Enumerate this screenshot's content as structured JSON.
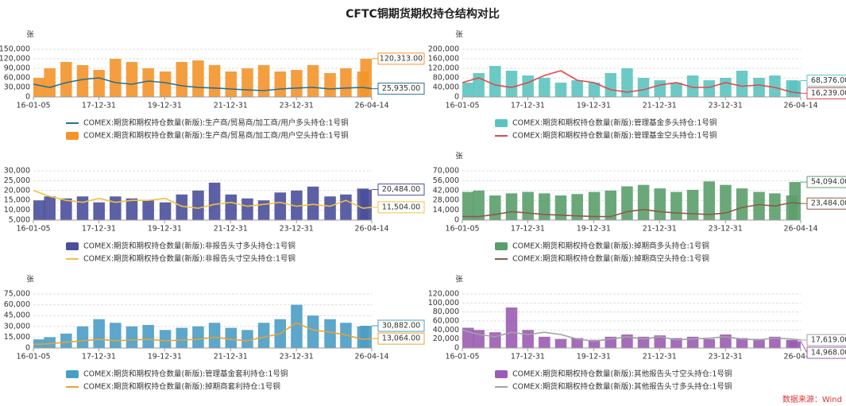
{
  "title": "CFTC铜期货期权持仓结构对比",
  "source": "数据来源：Wind",
  "chart_data": [
    {
      "type": "combo",
      "ylabel": "张",
      "x": [
        "16-01-05",
        "16-07-05",
        "17-01-03",
        "17-07-04",
        "18-01-02",
        "18-07-03",
        "19-01-01",
        "19-07-02",
        "20-01-07",
        "20-07-07",
        "21-01-05",
        "21-07-06",
        "22-01-04",
        "22-07-05",
        "23-01-03",
        "23-07-04",
        "24-01-02",
        "24-07-02",
        "25-01-07",
        "25-07-01",
        "26-01-06",
        "26-04-14"
      ],
      "xlim": [
        "16-01-05",
        "26-04-14"
      ],
      "xticks": [
        "16-01-05",
        "17-12-31",
        "19-12-31",
        "21-12-31",
        "23-12-31",
        "26-04-14"
      ],
      "ylim": [
        0,
        150000
      ],
      "yticks": [
        0,
        {
          "value": 30000,
          "label": "30,000"
        },
        {
          "value": 60000,
          "label": "60,000"
        },
        {
          "value": 90000,
          "label": "90,000"
        },
        {
          "value": 120000,
          "label": "120,000"
        },
        {
          "value": 150000,
          "label": "150,000"
        }
      ],
      "grid": true,
      "series": [
        {
          "name": "COMEX:期货和期权持仓数量(新版):生产商/贸易商/加工商/用户多头持仓:1号铜",
          "type": "line",
          "color": "#2b6f8e",
          "values": [
            40000,
            30000,
            45000,
            55000,
            60000,
            45000,
            40000,
            50000,
            45000,
            35000,
            30000,
            28000,
            25000,
            22000,
            20000,
            25000,
            28000,
            30000,
            25000,
            28000,
            30000,
            25935
          ],
          "value_labels": [
            null,
            null,
            null,
            null,
            null,
            null,
            null,
            null,
            null,
            null,
            null,
            null,
            null,
            null,
            null,
            null,
            null,
            null,
            null,
            null,
            null,
            "25,935.00"
          ]
        },
        {
          "name": "COMEX:期货和期权持仓数量(新版):生产商/贸易商/加工商/用户空头持仓:1号铜",
          "type": "bar",
          "color": "#f4932a",
          "values": [
            60000,
            90000,
            110000,
            100000,
            85000,
            120000,
            110000,
            90000,
            80000,
            110000,
            115000,
            100000,
            80000,
            90000,
            100000,
            80000,
            85000,
            100000,
            75000,
            90000,
            80000,
            120313
          ],
          "value_labels": [
            null,
            null,
            null,
            null,
            null,
            null,
            null,
            null,
            null,
            null,
            null,
            null,
            null,
            null,
            null,
            null,
            null,
            null,
            null,
            null,
            null,
            "120,313.00"
          ]
        }
      ]
    },
    {
      "type": "combo",
      "ylabel": "张",
      "x": [
        "16-01-05",
        "16-07-05",
        "17-01-03",
        "17-07-04",
        "18-01-02",
        "18-07-03",
        "19-01-01",
        "19-07-02",
        "20-01-07",
        "20-07-07",
        "21-01-05",
        "21-07-06",
        "22-01-04",
        "22-07-05",
        "23-01-03",
        "23-07-04",
        "24-01-02",
        "24-07-02",
        "25-01-07",
        "25-07-01",
        "26-01-06",
        "26-04-14"
      ],
      "xlim": [
        "16-01-05",
        "26-04-14"
      ],
      "xticks": [
        "16-01-05",
        "17-12-31",
        "19-12-31",
        "21-12-31",
        "23-12-31",
        "26-04-14"
      ],
      "ylim": [
        0,
        200000
      ],
      "yticks": [
        0,
        {
          "value": 40000,
          "label": "40,000"
        },
        {
          "value": 80000,
          "label": "80,000"
        },
        {
          "value": 120000,
          "label": "120,000"
        },
        {
          "value": 160000,
          "label": "160,000"
        },
        {
          "value": 200000,
          "label": "200,000"
        }
      ],
      "grid": true,
      "series": [
        {
          "name": "COMEX:期货和期权持仓数量(新版):管理基金多头持仓:1号铜",
          "type": "bar",
          "color": "#5cc4c0",
          "values": [
            60000,
            100000,
            130000,
            110000,
            90000,
            80000,
            60000,
            70000,
            60000,
            100000,
            120000,
            80000,
            70000,
            60000,
            90000,
            70000,
            80000,
            110000,
            80000,
            90000,
            70000,
            68376
          ],
          "value_labels": [
            null,
            null,
            null,
            null,
            null,
            null,
            null,
            null,
            null,
            null,
            null,
            null,
            null,
            null,
            null,
            null,
            null,
            null,
            null,
            null,
            null,
            "68,376.00"
          ]
        },
        {
          "name": "COMEX:期货和期权持仓数量(新版):管理基金空头持仓:1号铜",
          "type": "line",
          "color": "#e04848",
          "values": [
            60000,
            80000,
            50000,
            40000,
            60000,
            90000,
            110000,
            70000,
            60000,
            30000,
            20000,
            30000,
            50000,
            60000,
            40000,
            40000,
            60000,
            45000,
            50000,
            40000,
            20000,
            16239
          ],
          "value_labels": [
            null,
            null,
            null,
            null,
            null,
            null,
            null,
            null,
            null,
            null,
            null,
            null,
            null,
            null,
            null,
            null,
            null,
            null,
            null,
            null,
            null,
            "16,239.00"
          ]
        }
      ]
    },
    {
      "type": "combo",
      "x": [
        "16-01-05",
        "16-07-05",
        "17-01-03",
        "17-07-04",
        "18-01-02",
        "18-07-03",
        "19-01-01",
        "19-07-02",
        "20-01-07",
        "20-07-07",
        "21-01-05",
        "21-07-06",
        "22-01-04",
        "22-07-05",
        "23-01-03",
        "23-07-04",
        "24-01-02",
        "24-07-02",
        "25-01-07",
        "25-07-01",
        "26-01-06",
        "26-04-14"
      ],
      "xlim": [
        "16-01-05",
        "26-04-14"
      ],
      "xticks": [
        "16-01-05",
        "17-12-31",
        "19-12-31",
        "21-12-31",
        "23-12-31",
        "26-04-14"
      ],
      "ylim": [
        5000,
        30000
      ],
      "yticks": [
        {
          "value": 5000,
          "label": "5,000"
        },
        {
          "value": 10000,
          "label": "10,000"
        },
        {
          "value": 15000,
          "label": "15,000"
        },
        {
          "value": 20000,
          "label": "20,000"
        },
        {
          "value": 25000,
          "label": "25,000"
        },
        {
          "value": 30000,
          "label": "30,000"
        }
      ],
      "grid": true,
      "series": [
        {
          "name": "COMEX:期货和期权持仓数量(新版):非报告头寸多头持仓:1号铜",
          "type": "bar",
          "color": "#4a4f9b",
          "values": [
            15000,
            17000,
            16000,
            17000,
            14000,
            17000,
            16000,
            15000,
            14000,
            18000,
            20000,
            24000,
            18000,
            16000,
            15000,
            19000,
            20000,
            22000,
            17000,
            18000,
            21000,
            20484
          ],
          "value_labels": [
            null,
            null,
            null,
            null,
            null,
            null,
            null,
            null,
            null,
            null,
            null,
            null,
            null,
            null,
            null,
            null,
            null,
            null,
            null,
            null,
            null,
            "20,484.00"
          ]
        },
        {
          "name": "COMEX:期货和期权持仓数量(新版):非报告头寸空头持仓:1号铜",
          "type": "line",
          "color": "#f0c23e",
          "values": [
            20000,
            17000,
            15000,
            14000,
            16000,
            14000,
            15000,
            15000,
            16000,
            12000,
            11000,
            13000,
            14000,
            12000,
            13000,
            14000,
            12000,
            13000,
            12000,
            15000,
            11000,
            11504
          ],
          "value_labels": [
            null,
            null,
            null,
            null,
            null,
            null,
            null,
            null,
            null,
            null,
            null,
            null,
            null,
            null,
            null,
            null,
            null,
            null,
            null,
            null,
            null,
            "11,504.00"
          ]
        }
      ]
    },
    {
      "type": "combo",
      "ylabel": "张",
      "x": [
        "16-01-05",
        "16-07-05",
        "17-01-03",
        "17-07-04",
        "18-01-02",
        "18-07-03",
        "19-01-01",
        "19-07-02",
        "20-01-07",
        "20-07-07",
        "21-01-05",
        "21-07-06",
        "22-01-04",
        "22-07-05",
        "23-01-03",
        "23-07-04",
        "24-01-02",
        "24-07-02",
        "25-01-07",
        "25-07-01",
        "26-01-06",
        "26-04-14"
      ],
      "xlim": [
        "16-01-05",
        "26-04-14"
      ],
      "xticks": [
        "16-01-05",
        "17-12-31",
        "19-12-31",
        "21-12-31",
        "23-12-31",
        "26-04-14"
      ],
      "ylim": [
        0,
        70000
      ],
      "yticks": [
        0,
        {
          "value": 14000,
          "label": "14,000"
        },
        {
          "value": 28000,
          "label": "28,000"
        },
        {
          "value": 42000,
          "label": "42,000"
        },
        {
          "value": 56000,
          "label": "56,000"
        },
        {
          "value": 70000,
          "label": "70,000"
        }
      ],
      "grid": true,
      "series": [
        {
          "name": "COMEX:期货和期权持仓数量(新版):掉期商多头持仓:1号铜",
          "type": "bar",
          "color": "#5a9e6b",
          "values": [
            40000,
            42000,
            35000,
            38000,
            40000,
            38000,
            35000,
            37000,
            40000,
            42000,
            48000,
            50000,
            45000,
            40000,
            43000,
            55000,
            50000,
            45000,
            40000,
            38000,
            35000,
            54094
          ],
          "value_labels": [
            null,
            null,
            null,
            null,
            null,
            null,
            null,
            null,
            null,
            null,
            null,
            null,
            null,
            null,
            null,
            null,
            null,
            null,
            null,
            null,
            null,
            "54,094.00"
          ]
        },
        {
          "name": "COMEX:期货和期权持仓数量(新版):掉期商空头持仓:1号铜",
          "type": "line",
          "color": "#8b5a4b",
          "values": [
            5000,
            5000,
            8000,
            12000,
            10000,
            8000,
            7000,
            6000,
            5000,
            5000,
            12000,
            15000,
            12000,
            10000,
            9000,
            8000,
            10000,
            18000,
            22000,
            20000,
            25000,
            23484
          ],
          "value_labels": [
            null,
            null,
            null,
            null,
            null,
            null,
            null,
            null,
            null,
            null,
            null,
            null,
            null,
            null,
            null,
            null,
            null,
            null,
            null,
            null,
            null,
            "23,484.00"
          ]
        }
      ]
    },
    {
      "type": "combo",
      "ylabel": "张",
      "x": [
        "16-01-05",
        "16-07-05",
        "17-01-03",
        "17-07-04",
        "18-01-02",
        "18-07-03",
        "19-01-01",
        "19-07-02",
        "20-01-07",
        "20-07-07",
        "21-01-05",
        "21-07-06",
        "22-01-04",
        "22-07-05",
        "23-01-03",
        "23-07-04",
        "24-01-02",
        "24-07-02",
        "25-01-07",
        "25-07-01",
        "26-01-06",
        "26-04-14"
      ],
      "xlim": [
        "16-01-05",
        "26-04-14"
      ],
      "xticks": [
        "16-01-05",
        "17-12-31",
        "19-12-31",
        "21-12-31",
        "23-12-31",
        "26-04-14"
      ],
      "ylim": [
        0,
        75000
      ],
      "yticks": [
        0,
        {
          "value": 15000,
          "label": "15,000"
        },
        {
          "value": 30000,
          "label": "30,000"
        },
        {
          "value": 45000,
          "label": "45,000"
        },
        {
          "value": 60000,
          "label": "60,000"
        },
        {
          "value": 75000,
          "label": "75,000"
        }
      ],
      "grid": true,
      "series": [
        {
          "name": "COMEX:期货和期权持仓数量(新版):管理基金套利持仓:1号铜",
          "type": "bar",
          "color": "#4a9dc5",
          "values": [
            12000,
            15000,
            20000,
            30000,
            40000,
            35000,
            30000,
            32000,
            25000,
            28000,
            30000,
            35000,
            28000,
            25000,
            35000,
            40000,
            60000,
            45000,
            40000,
            35000,
            30000,
            30882
          ],
          "value_labels": [
            null,
            null,
            null,
            null,
            null,
            null,
            null,
            null,
            null,
            null,
            null,
            null,
            null,
            null,
            null,
            null,
            null,
            null,
            null,
            null,
            null,
            "30,882.00"
          ]
        },
        {
          "name": "COMEX:期货和期权持仓数量(新版):掉期商套利持仓:1号铜",
          "type": "line",
          "color": "#e8a232",
          "values": [
            5000,
            6000,
            8000,
            10000,
            12000,
            10000,
            11000,
            12000,
            10000,
            11000,
            12000,
            15000,
            12000,
            10000,
            15000,
            20000,
            35000,
            25000,
            22000,
            18000,
            12000,
            13064
          ],
          "value_labels": [
            null,
            null,
            null,
            null,
            null,
            null,
            null,
            null,
            null,
            null,
            null,
            null,
            null,
            null,
            null,
            null,
            null,
            null,
            null,
            null,
            null,
            "13,064.00"
          ]
        }
      ]
    },
    {
      "type": "combo",
      "ylabel": "张",
      "x": [
        "16-01-05",
        "16-07-05",
        "17-01-03",
        "17-07-04",
        "18-01-02",
        "18-07-03",
        "19-01-01",
        "19-07-02",
        "20-01-07",
        "20-07-07",
        "21-01-05",
        "21-07-06",
        "22-01-04",
        "22-07-05",
        "23-01-03",
        "23-07-04",
        "24-01-02",
        "24-07-02",
        "25-01-07",
        "25-07-01",
        "26-01-06",
        "26-04-14"
      ],
      "xlim": [
        "16-01-05",
        "26-04-14"
      ],
      "xticks": [
        "16-01-05",
        "17-12-31",
        "19-12-31",
        "21-12-31",
        "23-12-31",
        "26-04-14"
      ],
      "ylim": [
        0,
        120000
      ],
      "yticks": [
        0,
        {
          "value": 20000,
          "label": "20,000"
        },
        {
          "value": 40000,
          "label": "40,000"
        },
        {
          "value": 60000,
          "label": "60,000"
        },
        {
          "value": 80000,
          "label": "80,000"
        },
        {
          "value": 100000,
          "label": "100,000"
        },
        {
          "value": 120000,
          "label": "120,000"
        }
      ],
      "grid": true,
      "series": [
        {
          "name": "COMEX:期货和期权持仓数量(新版):其他报告头寸空头持仓:1号铜",
          "type": "bar",
          "color": "#9b5cb2",
          "values": [
            45000,
            40000,
            35000,
            90000,
            40000,
            25000,
            20000,
            22000,
            18000,
            25000,
            30000,
            25000,
            28000,
            22000,
            25000,
            20000,
            30000,
            22000,
            20000,
            25000,
            18000,
            14968
          ],
          "value_labels": [
            null,
            null,
            null,
            null,
            null,
            null,
            null,
            null,
            null,
            null,
            null,
            null,
            null,
            null,
            null,
            null,
            null,
            null,
            null,
            null,
            null,
            "14,968.00"
          ]
        },
        {
          "name": "COMEX:期货和期权持仓数量(新版):其他报告头寸多头持仓:1号铜",
          "type": "line",
          "color": "#a3a3a3",
          "values": [
            40000,
            30000,
            25000,
            35000,
            30000,
            35000,
            30000,
            20000,
            15000,
            20000,
            25000,
            20000,
            25000,
            18000,
            20000,
            22000,
            25000,
            20000,
            18000,
            22000,
            20000,
            17619
          ],
          "value_labels": [
            null,
            null,
            null,
            null,
            null,
            null,
            null,
            null,
            null,
            null,
            null,
            null,
            null,
            null,
            null,
            null,
            null,
            null,
            null,
            null,
            null,
            "17,619.00"
          ]
        }
      ]
    }
  ]
}
